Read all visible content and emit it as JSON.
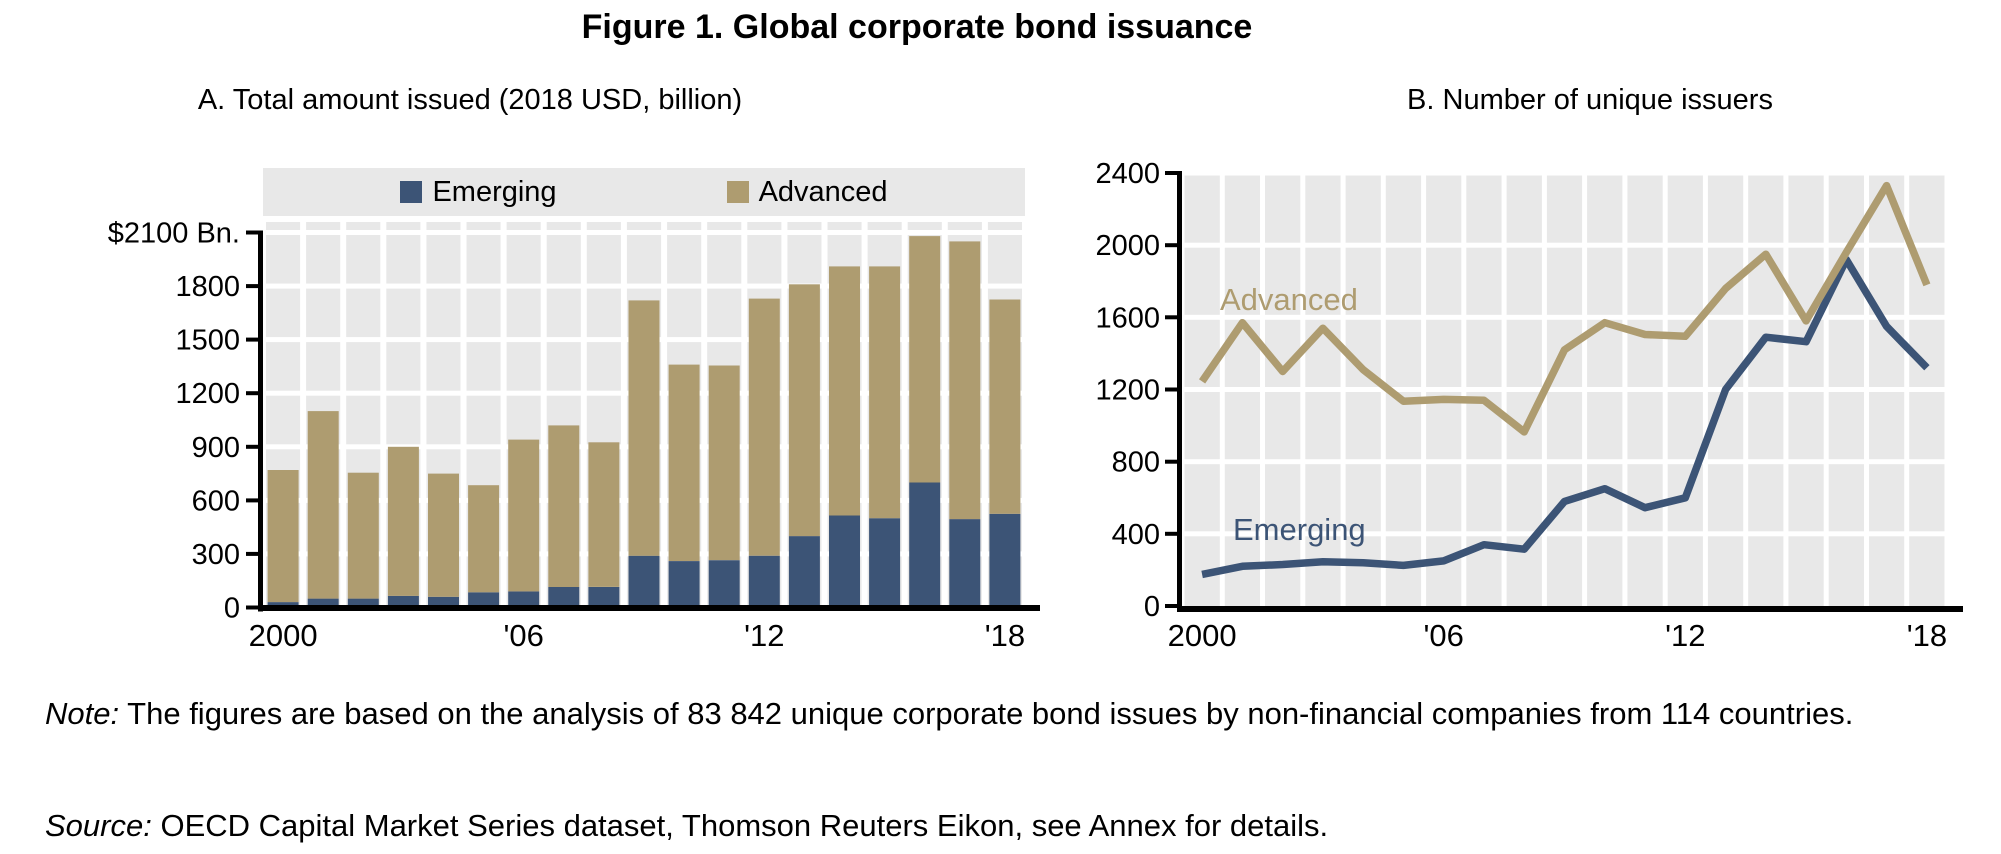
{
  "figure_title": "Figure 1. Global corporate bond issuance",
  "colors": {
    "emerging": "#3C5476",
    "advanced": "#AE9C70",
    "plot_bg": "#E8E8E8",
    "grid": "#FFFFFF",
    "axis": "#000000"
  },
  "note": {
    "label": "Note:",
    "text": " The figures are based on the analysis of 83 842 unique corporate bond issues by non-financial companies from 114 countries."
  },
  "source": {
    "label": "Source:",
    "text": " OECD Capital Market Series dataset, Thomson Reuters Eikon, see Annex for details."
  },
  "chart_data": [
    {
      "type": "bar",
      "stacked": true,
      "title": "A. Total amount issued (2018 USD, billion)",
      "categories": [
        2000,
        2001,
        2002,
        2003,
        2004,
        2005,
        2006,
        2007,
        2008,
        2009,
        2010,
        2011,
        2012,
        2013,
        2014,
        2015,
        2016,
        2017,
        2018
      ],
      "series": [
        {
          "name": "Emerging",
          "color": "#3C5476",
          "values": [
            30,
            50,
            50,
            65,
            60,
            85,
            90,
            115,
            115,
            290,
            260,
            265,
            290,
            400,
            515,
            500,
            700,
            495,
            525
          ]
        },
        {
          "name": "Advanced",
          "color": "#AE9C70",
          "values": [
            740,
            1050,
            705,
            835,
            690,
            600,
            850,
            905,
            810,
            1430,
            1100,
            1090,
            1440,
            1410,
            1395,
            1410,
            1380,
            1555,
            1200
          ]
        }
      ],
      "ylim": [
        0,
        2100
      ],
      "y_tick_step": 300,
      "y_top_label": "$2100 Bn.",
      "x_ticks": [
        {
          "year": 2000,
          "label": "2000"
        },
        {
          "year": 2006,
          "label": "'06"
        },
        {
          "year": 2012,
          "label": "'12"
        },
        {
          "year": 2018,
          "label": "'18"
        }
      ],
      "legend_position": "top",
      "grid": true
    },
    {
      "type": "line",
      "title": "B. Number of unique issuers",
      "categories": [
        2000,
        2001,
        2002,
        2003,
        2004,
        2005,
        2006,
        2007,
        2008,
        2009,
        2010,
        2011,
        2012,
        2013,
        2014,
        2015,
        2016,
        2017,
        2018
      ],
      "series": [
        {
          "name": "Emerging",
          "color": "#3C5476",
          "values": [
            175,
            220,
            230,
            245,
            240,
            225,
            250,
            340,
            315,
            580,
            650,
            545,
            600,
            1200,
            1490,
            1465,
            1920,
            1550,
            1320
          ]
        },
        {
          "name": "Advanced",
          "color": "#AE9C70",
          "values": [
            1245,
            1570,
            1300,
            1540,
            1310,
            1135,
            1145,
            1140,
            965,
            1420,
            1570,
            1505,
            1495,
            1760,
            1950,
            1580,
            1960,
            2330,
            1780
          ]
        }
      ],
      "ylim": [
        0,
        2400
      ],
      "y_tick_step": 400,
      "x_ticks": [
        {
          "year": 2000,
          "label": "2000"
        },
        {
          "year": 2006,
          "label": "'06"
        },
        {
          "year": 2012,
          "label": "'12"
        },
        {
          "year": 2018,
          "label": "'18"
        }
      ],
      "annotations": [
        {
          "text": "Advanced",
          "series": "Advanced",
          "color": "#AE9C70"
        },
        {
          "text": "Emerging",
          "series": "Emerging",
          "color": "#3C5476"
        }
      ],
      "legend_position": "in-plot-labels",
      "grid": true
    }
  ]
}
